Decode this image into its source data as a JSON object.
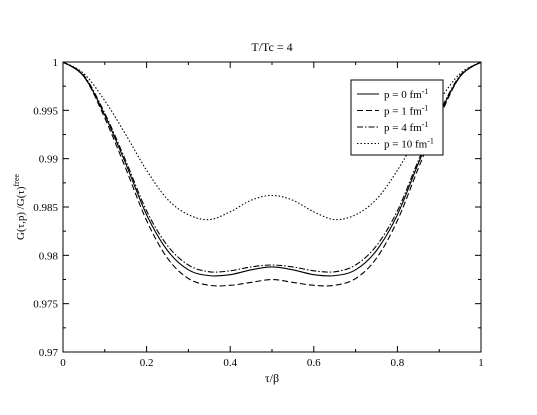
{
  "chart_data": {
    "type": "line",
    "title": "T/Tc = 4",
    "xlabel": "τ/β",
    "ylabel": {
      "main": "G(τ,p)  /G(τ)",
      "superscript": "free"
    },
    "xlim": [
      0,
      1
    ],
    "ylim": [
      0.97,
      1.0
    ],
    "xticks": [
      "0",
      "0.2",
      "0.4",
      "0.6",
      "0.8",
      "1"
    ],
    "xtick_values": [
      0,
      0.2,
      0.4,
      0.6,
      0.8,
      1.0
    ],
    "yticks": [
      "0.97",
      "0.975",
      "0.98",
      "0.985",
      "0.99",
      "0.995",
      "1"
    ],
    "ytick_values": [
      0.97,
      0.975,
      0.98,
      0.985,
      0.99,
      0.995,
      1.0
    ],
    "grid": false,
    "legend_position": "top-right",
    "x": [
      0,
      0.05,
      0.1,
      0.15,
      0.2,
      0.25,
      0.3,
      0.35,
      0.4,
      0.45,
      0.5,
      0.55,
      0.6,
      0.65,
      0.7,
      0.75,
      0.8,
      0.85,
      0.9,
      0.95,
      1.0
    ],
    "series": [
      {
        "name": "p = 0 fm",
        "superscript": "-1",
        "dash": "solid",
        "values": [
          1.0,
          0.9985,
          0.9945,
          0.9895,
          0.9842,
          0.9805,
          0.9785,
          0.9779,
          0.978,
          0.9785,
          0.9788,
          0.9785,
          0.978,
          0.9779,
          0.9785,
          0.9805,
          0.9842,
          0.9895,
          0.9945,
          0.9985,
          1.0
        ]
      },
      {
        "name": "p = 1 fm",
        "superscript": "-1",
        "dash": "dashed",
        "values": [
          1.0,
          0.9985,
          0.9942,
          0.989,
          0.9836,
          0.9797,
          0.9776,
          0.9769,
          0.9769,
          0.9772,
          0.9775,
          0.9772,
          0.9769,
          0.9769,
          0.9776,
          0.9797,
          0.9836,
          0.989,
          0.9942,
          0.9985,
          1.0
        ]
      },
      {
        "name": "p = 4 fm",
        "superscript": "-1",
        "dash": "dashdot",
        "values": [
          1.0,
          0.9986,
          0.9947,
          0.9898,
          0.9846,
          0.981,
          0.979,
          0.9783,
          0.9784,
          0.9788,
          0.979,
          0.9788,
          0.9784,
          0.9783,
          0.979,
          0.981,
          0.9846,
          0.9898,
          0.9947,
          0.9986,
          1.0
        ]
      },
      {
        "name": "p = 10 fm",
        "superscript": "-1",
        "dash": "dotted",
        "values": [
          1.0,
          0.9988,
          0.996,
          0.9925,
          0.9888,
          0.9858,
          0.9842,
          0.9837,
          0.9845,
          0.9857,
          0.9862,
          0.9857,
          0.9845,
          0.9837,
          0.9842,
          0.9858,
          0.9888,
          0.9925,
          0.996,
          0.9988,
          1.0
        ]
      }
    ]
  }
}
